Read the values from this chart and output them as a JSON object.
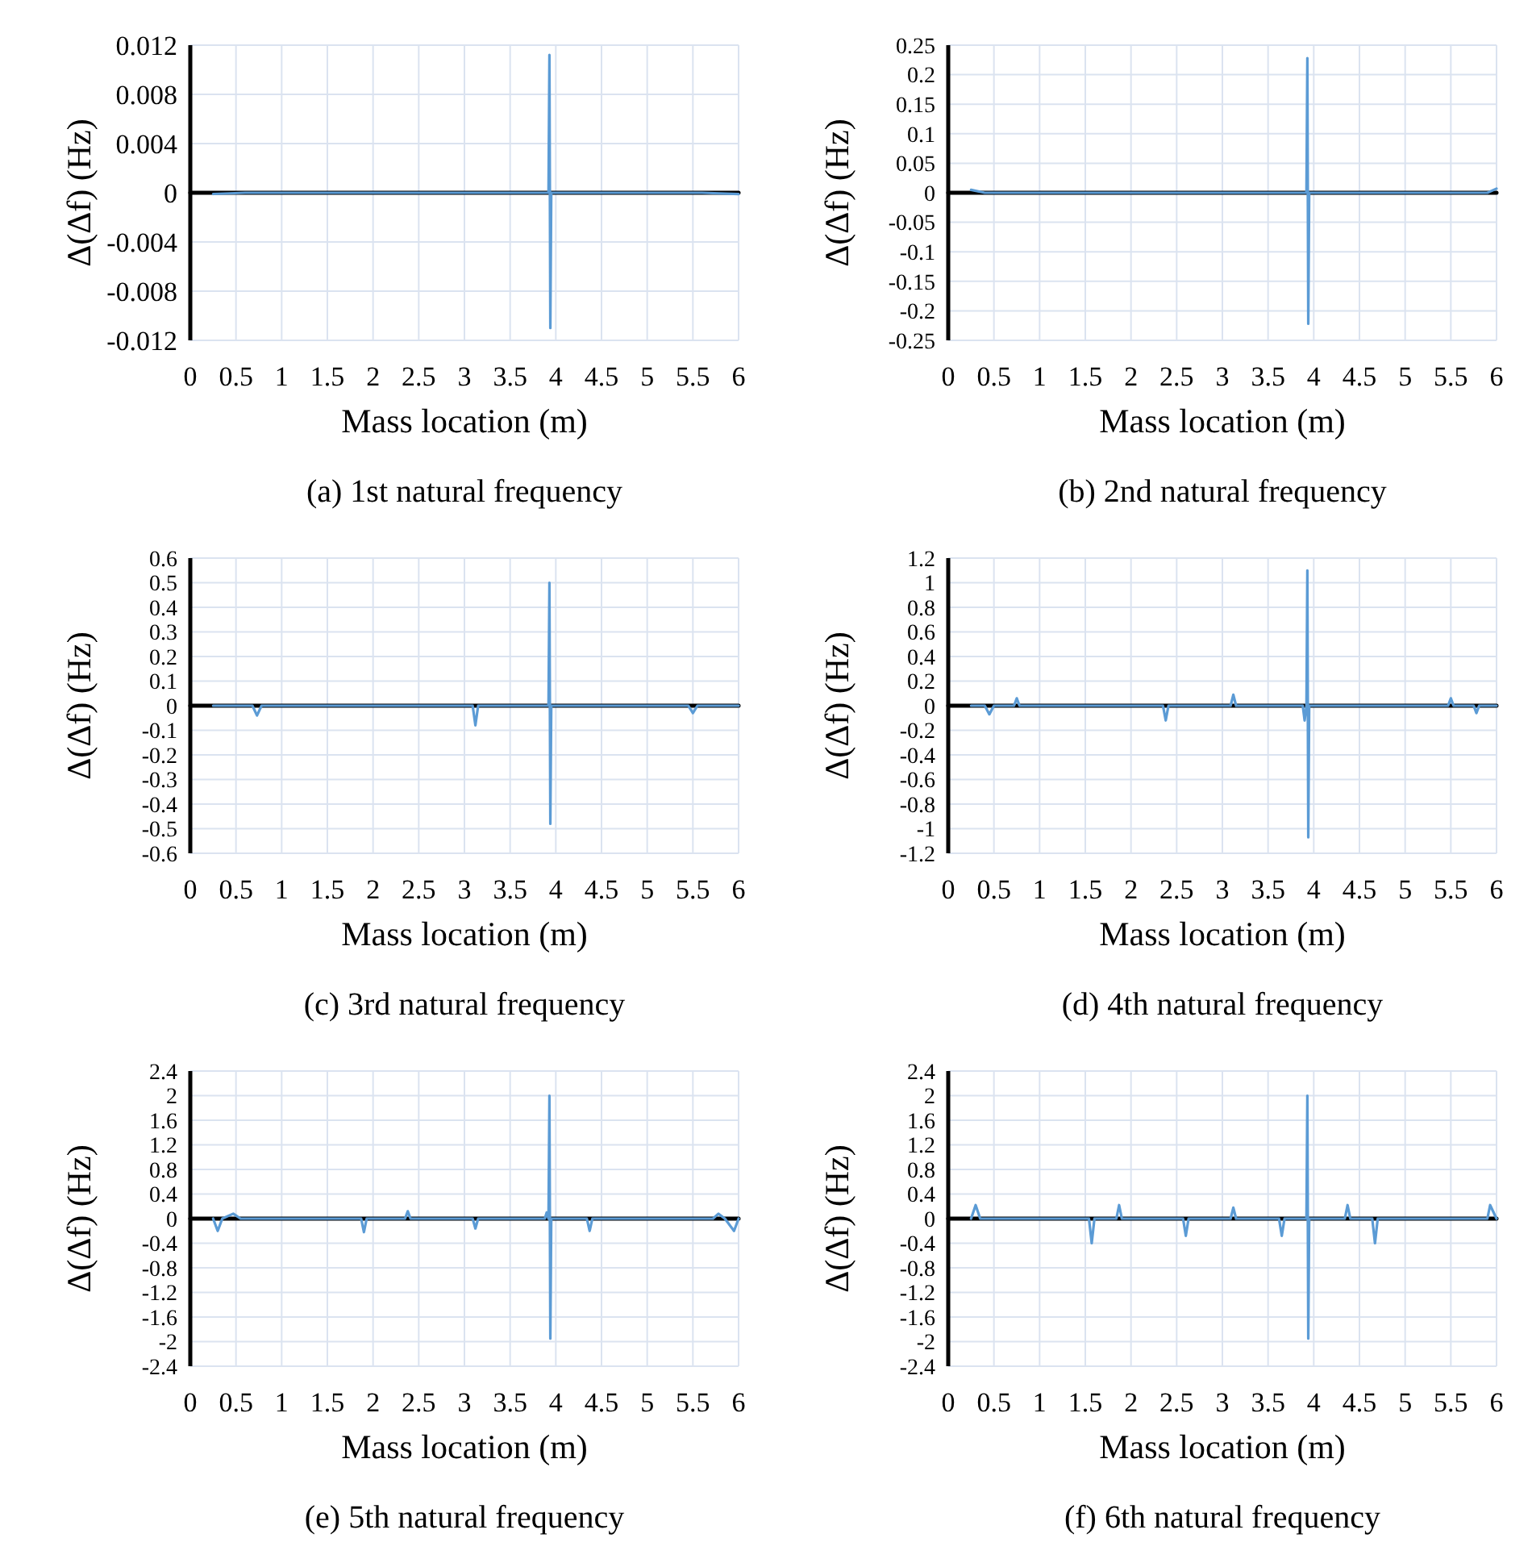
{
  "chart_data": [
    {
      "type": "line",
      "title": "(a) 1st natural frequency",
      "xlabel": "Mass location (m)",
      "ylabel": "Δ(Δf) (Hz)",
      "xlim": [
        0,
        6
      ],
      "xticks": [
        0,
        0.5,
        1,
        1.5,
        2,
        2.5,
        3,
        3.5,
        4,
        4.5,
        5,
        5.5,
        6
      ],
      "ylim": [
        -0.012,
        0.012
      ],
      "yticks": [
        0.012,
        0.008,
        0.004,
        0,
        -0.004,
        -0.008,
        -0.012
      ],
      "grid": true,
      "series": [
        {
          "color": "#000000",
          "x": [
            0,
            6
          ],
          "values": [
            0,
            0
          ]
        },
        {
          "color": "#5b9bd5",
          "x": [
            0.25,
            0.6,
            3.92,
            3.93,
            3.94,
            3.95,
            5.6,
            6
          ],
          "values": [
            -0.0001,
            0,
            0,
            0.0112,
            -0.011,
            0,
            0,
            -0.0001
          ]
        }
      ]
    },
    {
      "type": "line",
      "title": "(b) 2nd natural frequency",
      "xlabel": "Mass location (m)",
      "ylabel": "Δ(Δf) (Hz)",
      "xlim": [
        0,
        6
      ],
      "xticks": [
        0,
        0.5,
        1,
        1.5,
        2,
        2.5,
        3,
        3.5,
        4,
        4.5,
        5,
        5.5,
        6
      ],
      "ylim": [
        -0.25,
        0.25
      ],
      "yticks": [
        0.25,
        0.2,
        0.15,
        0.1,
        0.05,
        0,
        -0.05,
        -0.1,
        -0.15,
        -0.2,
        -0.25
      ],
      "grid": true,
      "series": [
        {
          "color": "#000000",
          "x": [
            0,
            6
          ],
          "values": [
            0,
            0
          ]
        },
        {
          "color": "#5b9bd5",
          "x": [
            0.25,
            0.4,
            3.92,
            3.93,
            3.94,
            3.95,
            5.9,
            6
          ],
          "values": [
            0.005,
            0,
            0,
            0.228,
            -0.222,
            0,
            0,
            0.007
          ]
        }
      ]
    },
    {
      "type": "line",
      "title": "(c) 3rd natural frequency",
      "xlabel": "Mass location (m)",
      "ylabel": "Δ(Δf) (Hz)",
      "xlim": [
        0,
        6
      ],
      "xticks": [
        0,
        0.5,
        1,
        1.5,
        2,
        2.5,
        3,
        3.5,
        4,
        4.5,
        5,
        5.5,
        6
      ],
      "ylim": [
        -0.6,
        0.6
      ],
      "yticks": [
        0.6,
        0.5,
        0.4,
        0.3,
        0.2,
        0.1,
        0,
        -0.1,
        -0.2,
        -0.3,
        -0.4,
        -0.5,
        -0.6
      ],
      "grid": true,
      "series": [
        {
          "color": "#000000",
          "x": [
            0,
            6
          ],
          "values": [
            0,
            0
          ]
        },
        {
          "color": "#5b9bd5",
          "x": [
            0.25,
            0.68,
            0.73,
            0.78,
            3.09,
            3.12,
            3.15,
            3.92,
            3.93,
            3.94,
            3.95,
            5.45,
            5.5,
            5.55,
            6
          ],
          "values": [
            0,
            0,
            -0.04,
            0,
            0,
            -0.08,
            0,
            0,
            0.5,
            -0.48,
            0,
            0,
            -0.03,
            0,
            0
          ]
        }
      ]
    },
    {
      "type": "line",
      "title": "(d) 4th natural frequency",
      "xlabel": "Mass location (m)",
      "ylabel": "Δ(Δf) (Hz)",
      "xlim": [
        0,
        6
      ],
      "xticks": [
        0,
        0.5,
        1,
        1.5,
        2,
        2.5,
        3,
        3.5,
        4,
        4.5,
        5,
        5.5,
        6
      ],
      "ylim": [
        -1.2,
        1.2
      ],
      "yticks": [
        1.2,
        1,
        0.8,
        0.6,
        0.4,
        0.2,
        0,
        -0.2,
        -0.4,
        -0.6,
        -0.8,
        -1,
        -1.2
      ],
      "grid": true,
      "series": [
        {
          "color": "#000000",
          "x": [
            0,
            6
          ],
          "values": [
            0,
            0
          ]
        },
        {
          "color": "#5b9bd5",
          "x": [
            0.25,
            0.4,
            0.45,
            0.5,
            0.72,
            0.75,
            0.78,
            2.35,
            2.38,
            2.41,
            3.09,
            3.12,
            3.15,
            3.88,
            3.9,
            3.92,
            3.93,
            3.94,
            3.95,
            5.47,
            5.5,
            5.53,
            5.75,
            5.78,
            5.81,
            6
          ],
          "values": [
            0,
            0,
            -0.07,
            0,
            0,
            0.06,
            0,
            0,
            -0.12,
            0,
            0,
            0.09,
            0,
            0,
            -0.12,
            0,
            1.1,
            -1.07,
            0,
            0,
            0.06,
            0,
            0,
            -0.06,
            0,
            0
          ]
        }
      ]
    },
    {
      "type": "line",
      "title": "(e) 5th natural frequency",
      "xlabel": "Mass location (m)",
      "ylabel": "Δ(Δf) (Hz)",
      "xlim": [
        0,
        6
      ],
      "xticks": [
        0,
        0.5,
        1,
        1.5,
        2,
        2.5,
        3,
        3.5,
        4,
        4.5,
        5,
        5.5,
        6
      ],
      "ylim": [
        -2.4,
        2.4
      ],
      "yticks": [
        2.4,
        2,
        1.6,
        1.2,
        0.8,
        0.4,
        0,
        -0.4,
        -0.8,
        -1.2,
        -1.6,
        -2,
        -2.4
      ],
      "grid": true,
      "series": [
        {
          "color": "#000000",
          "x": [
            0,
            6
          ],
          "values": [
            0,
            0
          ]
        },
        {
          "color": "#5b9bd5",
          "x": [
            0.25,
            0.3,
            0.35,
            0.47,
            0.55,
            1.87,
            1.9,
            1.93,
            2.35,
            2.38,
            2.41,
            3.09,
            3.12,
            3.15,
            3.88,
            3.9,
            3.92,
            3.93,
            3.94,
            3.95,
            4.34,
            4.37,
            4.4,
            5.72,
            5.78,
            5.85,
            5.95,
            6
          ],
          "values": [
            0,
            -0.2,
            0,
            0.08,
            0,
            0,
            -0.22,
            0,
            0,
            0.12,
            0,
            0,
            -0.16,
            0,
            0,
            0.1,
            0,
            2,
            -1.95,
            0,
            0,
            -0.2,
            0,
            0,
            0.08,
            0,
            -0.2,
            0
          ]
        }
      ]
    },
    {
      "type": "line",
      "title": "(f) 6th natural frequency",
      "xlabel": "Mass location (m)",
      "ylabel": "Δ(Δf) (Hz)",
      "xlim": [
        0,
        6
      ],
      "xticks": [
        0,
        0.5,
        1,
        1.5,
        2,
        2.5,
        3,
        3.5,
        4,
        4.5,
        5,
        5.5,
        6
      ],
      "ylim": [
        -2.4,
        2.4
      ],
      "yticks": [
        2.4,
        2,
        1.6,
        1.2,
        0.8,
        0.4,
        0,
        -0.4,
        -0.8,
        -1.2,
        -1.6,
        -2,
        -2.4
      ],
      "grid": true,
      "series": [
        {
          "color": "#000000",
          "x": [
            0,
            6
          ],
          "values": [
            0,
            0
          ]
        },
        {
          "color": "#5b9bd5",
          "x": [
            0.25,
            0.3,
            0.35,
            1.54,
            1.57,
            1.6,
            1.84,
            1.87,
            1.9,
            2.57,
            2.6,
            2.63,
            3.09,
            3.12,
            3.15,
            3.62,
            3.65,
            3.68,
            3.92,
            3.93,
            3.94,
            3.95,
            4.34,
            4.37,
            4.4,
            4.64,
            4.67,
            4.7,
            5.9,
            5.93,
            6
          ],
          "values": [
            0,
            0.22,
            0,
            0,
            -0.4,
            0,
            0,
            0.22,
            0,
            0,
            -0.28,
            0,
            0,
            0.18,
            0,
            0,
            -0.28,
            0,
            0,
            2,
            -1.95,
            0,
            0,
            0.22,
            0,
            0,
            -0.4,
            0,
            0,
            0.22,
            0
          ]
        }
      ]
    }
  ]
}
